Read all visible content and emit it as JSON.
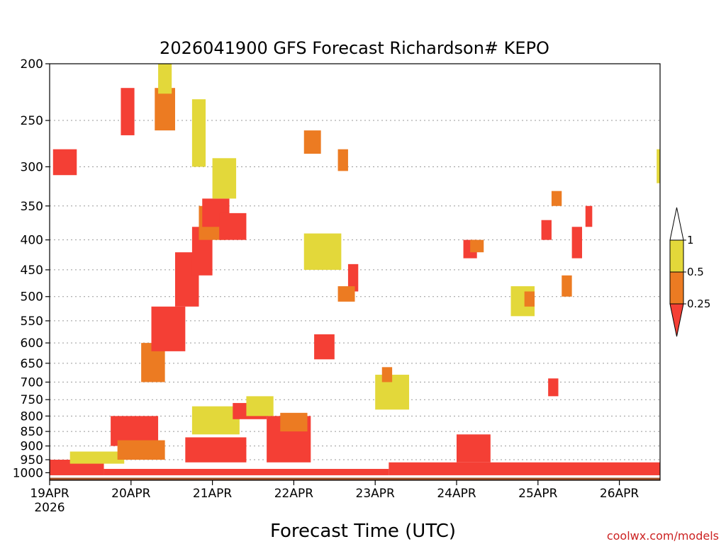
{
  "chart_data": {
    "type": "heatmap",
    "title": "2026041900 GFS Forecast Richardson# KEPO",
    "xlabel": "Forecast Time (UTC)",
    "ylabel": "",
    "credit": "coolwx.com/models",
    "y_unit": "hPa",
    "y_scale": "log",
    "ylim": [
      1030,
      200
    ],
    "xlim_hours": [
      0,
      180
    ],
    "y_ticks": [
      "200",
      "250",
      "300",
      "350",
      "400",
      "450",
      "500",
      "550",
      "600",
      "650",
      "700",
      "750",
      "800",
      "850",
      "900",
      "950",
      "1000"
    ],
    "x_ticks": [
      {
        "label": "19APR",
        "hour": 0,
        "sub": "2026"
      },
      {
        "label": "20APR",
        "hour": 24
      },
      {
        "label": "21APR",
        "hour": 48
      },
      {
        "label": "22APR",
        "hour": 72
      },
      {
        "label": "23APR",
        "hour": 96
      },
      {
        "label": "24APR",
        "hour": 120
      },
      {
        "label": "25APR",
        "hour": 144
      },
      {
        "label": "26APR",
        "hour": 168
      }
    ],
    "legend": {
      "position": "right",
      "labels": [
        "1",
        "0.5",
        "0.25"
      ],
      "bins": [
        {
          "range": "0.5-1",
          "color": "#e3d83a"
        },
        {
          "range": "0.25-0.5",
          "color": "#ec7b22"
        },
        {
          "range": "<0.25",
          "color": "#f43f35"
        }
      ]
    },
    "colors": {
      "yellow": "#e3d83a",
      "orange": "#ec7b22",
      "red": "#f43f35",
      "ground": "#9a4e24"
    },
    "grid": true,
    "surface_pressure": 1018,
    "regions": [
      {
        "h0": 0,
        "h1": 16,
        "p0": 950,
        "p1": 1010,
        "c": "red"
      },
      {
        "h0": 16,
        "h1": 100,
        "p0": 985,
        "p1": 1010,
        "c": "red"
      },
      {
        "h0": 100,
        "h1": 180,
        "p0": 960,
        "p1": 1010,
        "c": "red"
      },
      {
        "h0": 120,
        "h1": 130,
        "p0": 860,
        "p1": 960,
        "c": "red"
      },
      {
        "h0": 6,
        "h1": 22,
        "p0": 920,
        "p1": 965,
        "c": "yellow"
      },
      {
        "h0": 18,
        "h1": 32,
        "p0": 800,
        "p1": 900,
        "c": "red"
      },
      {
        "h0": 20,
        "h1": 34,
        "p0": 880,
        "p1": 950,
        "c": "orange"
      },
      {
        "h0": 40,
        "h1": 58,
        "p0": 870,
        "p1": 960,
        "c": "red"
      },
      {
        "h0": 42,
        "h1": 56,
        "p0": 770,
        "p1": 860,
        "c": "yellow"
      },
      {
        "h0": 54,
        "h1": 64,
        "p0": 760,
        "p1": 810,
        "c": "red"
      },
      {
        "h0": 58,
        "h1": 66,
        "p0": 740,
        "p1": 800,
        "c": "yellow"
      },
      {
        "h0": 64,
        "h1": 77,
        "p0": 800,
        "p1": 960,
        "c": "red"
      },
      {
        "h0": 68,
        "h1": 76,
        "p0": 790,
        "p1": 850,
        "c": "orange"
      },
      {
        "h0": 27,
        "h1": 34,
        "p0": 600,
        "p1": 700,
        "c": "orange"
      },
      {
        "h0": 30,
        "h1": 40,
        "p0": 520,
        "p1": 620,
        "c": "red"
      },
      {
        "h0": 37,
        "h1": 44,
        "p0": 420,
        "p1": 520,
        "c": "red"
      },
      {
        "h0": 42,
        "h1": 48,
        "p0": 380,
        "p1": 460,
        "c": "red"
      },
      {
        "h0": 44,
        "h1": 52,
        "p0": 350,
        "p1": 400,
        "c": "orange"
      },
      {
        "h0": 45,
        "h1": 53,
        "p0": 340,
        "p1": 380,
        "c": "red"
      },
      {
        "h0": 50,
        "h1": 58,
        "p0": 360,
        "p1": 400,
        "c": "red"
      },
      {
        "h0": 48,
        "h1": 55,
        "p0": 290,
        "p1": 340,
        "c": "yellow"
      },
      {
        "h0": 1,
        "h1": 8,
        "p0": 280,
        "p1": 310,
        "c": "red"
      },
      {
        "h0": 21,
        "h1": 25,
        "p0": 220,
        "p1": 265,
        "c": "red"
      },
      {
        "h0": 31,
        "h1": 37,
        "p0": 220,
        "p1": 260,
        "c": "orange"
      },
      {
        "h0": 32,
        "h1": 36,
        "p0": 200,
        "p1": 225,
        "c": "yellow"
      },
      {
        "h0": 42,
        "h1": 46,
        "p0": 230,
        "p1": 300,
        "c": "yellow"
      },
      {
        "h0": 75,
        "h1": 80,
        "p0": 260,
        "p1": 285,
        "c": "orange"
      },
      {
        "h0": 85,
        "h1": 88,
        "p0": 280,
        "p1": 305,
        "c": "orange"
      },
      {
        "h0": 75,
        "h1": 86,
        "p0": 390,
        "p1": 450,
        "c": "yellow"
      },
      {
        "h0": 88,
        "h1": 91,
        "p0": 440,
        "p1": 490,
        "c": "red"
      },
      {
        "h0": 85,
        "h1": 90,
        "p0": 480,
        "p1": 510,
        "c": "orange"
      },
      {
        "h0": 78,
        "h1": 84,
        "p0": 580,
        "p1": 640,
        "c": "red"
      },
      {
        "h0": 96,
        "h1": 106,
        "p0": 680,
        "p1": 780,
        "c": "yellow"
      },
      {
        "h0": 98,
        "h1": 101,
        "p0": 660,
        "p1": 700,
        "c": "orange"
      },
      {
        "h0": 122,
        "h1": 126,
        "p0": 400,
        "p1": 430,
        "c": "red"
      },
      {
        "h0": 124,
        "h1": 128,
        "p0": 400,
        "p1": 420,
        "c": "orange"
      },
      {
        "h0": 136,
        "h1": 143,
        "p0": 480,
        "p1": 540,
        "c": "yellow"
      },
      {
        "h0": 140,
        "h1": 143,
        "p0": 490,
        "p1": 520,
        "c": "orange"
      },
      {
        "h0": 145,
        "h1": 148,
        "p0": 370,
        "p1": 400,
        "c": "red"
      },
      {
        "h0": 151,
        "h1": 154,
        "p0": 460,
        "p1": 500,
        "c": "orange"
      },
      {
        "h0": 154,
        "h1": 157,
        "p0": 380,
        "p1": 430,
        "c": "red"
      },
      {
        "h0": 158,
        "h1": 160,
        "p0": 350,
        "p1": 380,
        "c": "red"
      },
      {
        "h0": 148,
        "h1": 151,
        "p0": 330,
        "p1": 350,
        "c": "orange"
      },
      {
        "h0": 147,
        "h1": 150,
        "p0": 690,
        "p1": 740,
        "c": "red"
      },
      {
        "h0": 179,
        "h1": 180,
        "p0": 280,
        "p1": 320,
        "c": "yellow"
      }
    ]
  }
}
